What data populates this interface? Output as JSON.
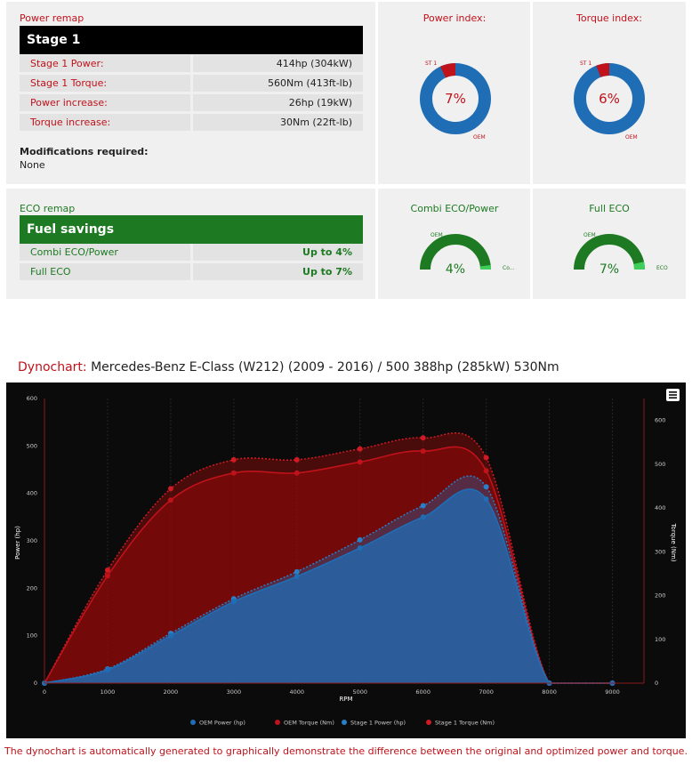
{
  "power_remap": {
    "section_label": "Power remap",
    "stage_label": "Stage 1",
    "rows": [
      {
        "label": "Stage 1 Power:",
        "value": "414hp (304kW)"
      },
      {
        "label": "Stage 1 Torque:",
        "value": "560Nm (413ft-lb)"
      },
      {
        "label": "Power increase:",
        "value": "26hp (19kW)"
      },
      {
        "label": "Torque increase:",
        "value": "30Nm (22ft-lb)"
      }
    ],
    "mods_label": "Modifications required:",
    "mods_value": "None"
  },
  "eco_remap": {
    "section_label": "ECO remap",
    "header_label": "Fuel savings",
    "rows": [
      {
        "label": "Combi ECO/Power",
        "value": "Up to 4%"
      },
      {
        "label": "Full ECO",
        "value": "Up to 7%"
      }
    ]
  },
  "gauges": {
    "power": {
      "title": "Power index:",
      "percent": 7,
      "label": "7%",
      "st_label": "ST 1",
      "oem_label": "OEM"
    },
    "torque": {
      "title": "Torque index:",
      "percent": 6,
      "label": "6%",
      "st_label": "ST 1",
      "oem_label": "OEM"
    },
    "combi": {
      "title": "Combi ECO/Power",
      "percent": 4,
      "label": "4%",
      "oem_label": "OEM",
      "side_label": "Co..."
    },
    "full": {
      "title": "Full ECO",
      "percent": 7,
      "label": "7%",
      "oem_label": "OEM",
      "side_label": "ECO"
    }
  },
  "colors": {
    "red": "#c0121b",
    "green": "#1d7a22",
    "blue": "#1f6db5",
    "bar_black": "#000000"
  },
  "dyno": {
    "title_label": "Dynochart:",
    "title_text": "Mercedes-Benz E-Class (W212) (2009 - 2016) / 500 388hp (285kW) 530Nm",
    "caption": "The dynochart is automatically generated to graphically demonstrate the difference between the original and optimized power and torque."
  },
  "chart_data": {
    "type": "area",
    "xlabel": "RPM",
    "ylabel": "Power (hp)",
    "y2label": "Torque (Nm)",
    "xlim": [
      0,
      9500
    ],
    "ylim": [
      0,
      600
    ],
    "y2lim": [
      0,
      650
    ],
    "x_ticks": [
      0,
      1000,
      2000,
      3000,
      4000,
      5000,
      6000,
      7000,
      8000,
      9000
    ],
    "y_ticks": [
      0,
      100,
      200,
      300,
      400,
      500,
      600
    ],
    "y2_ticks": [
      0,
      100,
      200,
      300,
      400,
      500,
      600
    ],
    "legend_position": "bottom",
    "series": [
      {
        "name": "OEM Power (hp)",
        "axis": "left",
        "color": "#1f6db5",
        "x": [
          0,
          1000,
          2000,
          3000,
          4000,
          5000,
          6000,
          7000,
          8000,
          9000
        ],
        "values": [
          0,
          28,
          100,
          172,
          225,
          285,
          350,
          388,
          0,
          0
        ]
      },
      {
        "name": "OEM Torque (Nm)",
        "axis": "right",
        "color": "#c0121b",
        "x": [
          0,
          1000,
          2000,
          3000,
          4000,
          5000,
          6000,
          7000,
          8000,
          9000
        ],
        "values": [
          0,
          245,
          418,
          480,
          480,
          505,
          530,
          485,
          0,
          0
        ]
      },
      {
        "name": "Stage 1 Power (hp)",
        "axis": "left",
        "color": "#2a7fc6",
        "x": [
          0,
          1000,
          2000,
          3000,
          4000,
          5000,
          6000,
          7000,
          8000,
          9000
        ],
        "values": [
          0,
          30,
          105,
          178,
          235,
          302,
          374,
          414,
          0,
          0
        ]
      },
      {
        "name": "Stage 1 Torque (Nm)",
        "axis": "right",
        "color": "#d01a24",
        "x": [
          0,
          1000,
          2000,
          3000,
          4000,
          5000,
          6000,
          7000,
          8000,
          9000
        ],
        "values": [
          0,
          258,
          444,
          510,
          510,
          535,
          560,
          515,
          0,
          0
        ]
      }
    ]
  }
}
